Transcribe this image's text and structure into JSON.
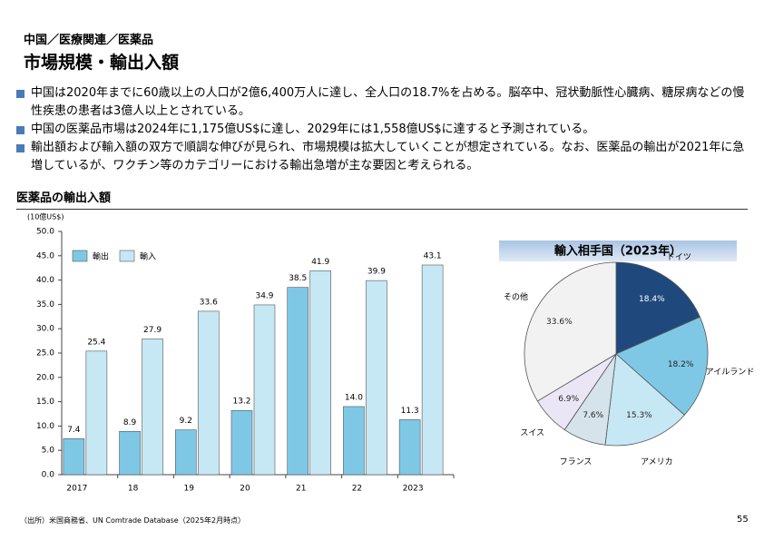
{
  "header": {
    "breadcrumb": "中国／医療関連／医薬品",
    "title": "市場規模・輸出入額"
  },
  "bullets": [
    "中国は2020年までに60歳以上の人口が2億6,400万人に達し、全人口の18.7%を占める。脳卒中、冠状動脈性心臓病、糖尿病などの慢性疾患の患者は3億人以上とされている。",
    "中国の医薬品市場は2024年に1,175億US$に達し、2029年には1,558億US$に達すると予測されている。",
    "輸出額および輸入額の双方で順調な伸びが見られ、市場規模は拡大していくことが想定されている。なお、医薬品の輸出が2021年に急増しているが、ワクチン等のカテゴリーにおける輸出急増が主な要因と考えられる。"
  ],
  "section_title": "医薬品の輸出入額",
  "chart_data": [
    {
      "type": "bar",
      "unit_label": "(10億US$)",
      "categories": [
        "2017",
        "18",
        "19",
        "20",
        "21",
        "22",
        "2023"
      ],
      "series": [
        {
          "name": "輸出",
          "color": "#7ec8e6",
          "values": [
            7.4,
            8.9,
            9.2,
            13.2,
            38.5,
            14.0,
            11.3
          ],
          "value_labels": [
            "7.4",
            "8.9",
            "9.2",
            "13.2",
            "38.5",
            "14.0",
            "11.3"
          ]
        },
        {
          "name": "輸入",
          "color": "#c6e8f5",
          "values": [
            25.4,
            27.9,
            33.6,
            34.9,
            41.9,
            39.9,
            43.1
          ]
        }
      ],
      "ylim": [
        0,
        50
      ],
      "yticks": [
        {
          "value": 0,
          "label": "0.0"
        },
        {
          "value": 5,
          "label": "5.0"
        },
        {
          "value": 10,
          "label": "10.0"
        },
        {
          "value": 15,
          "label": "15.0"
        },
        {
          "value": 20,
          "label": "20.0"
        },
        {
          "value": 25,
          "label": "25.0"
        },
        {
          "value": 30,
          "label": "30.0"
        },
        {
          "value": 35,
          "label": "35.0"
        },
        {
          "value": 40,
          "label": "40.0"
        },
        {
          "value": 45,
          "label": "45.0"
        },
        {
          "value": 50,
          "label": "50.0"
        }
      ],
      "legend": "top-left"
    },
    {
      "type": "pie",
      "title": "輸入相手国（2023年）",
      "categories": [
        "ドイツ",
        "アイルランド",
        "アメリカ",
        "フランス",
        "スイス",
        "その他"
      ],
      "values": [
        18.4,
        18.2,
        15.3,
        7.6,
        6.9,
        33.6
      ],
      "value_labels": [
        "18.4%",
        "18.2%",
        "15.3%",
        "7.6%",
        "6.9%",
        "33.6%"
      ],
      "colors": [
        "#1f497d",
        "#7ec8e6",
        "#c6e8f5",
        "#d6e3ea",
        "#ebe6f5",
        "#f2f2f2"
      ]
    }
  ],
  "footer": {
    "source": "（出所）米国商務省、UN Comtrade Database（2025年2月時点）",
    "page": "55"
  }
}
